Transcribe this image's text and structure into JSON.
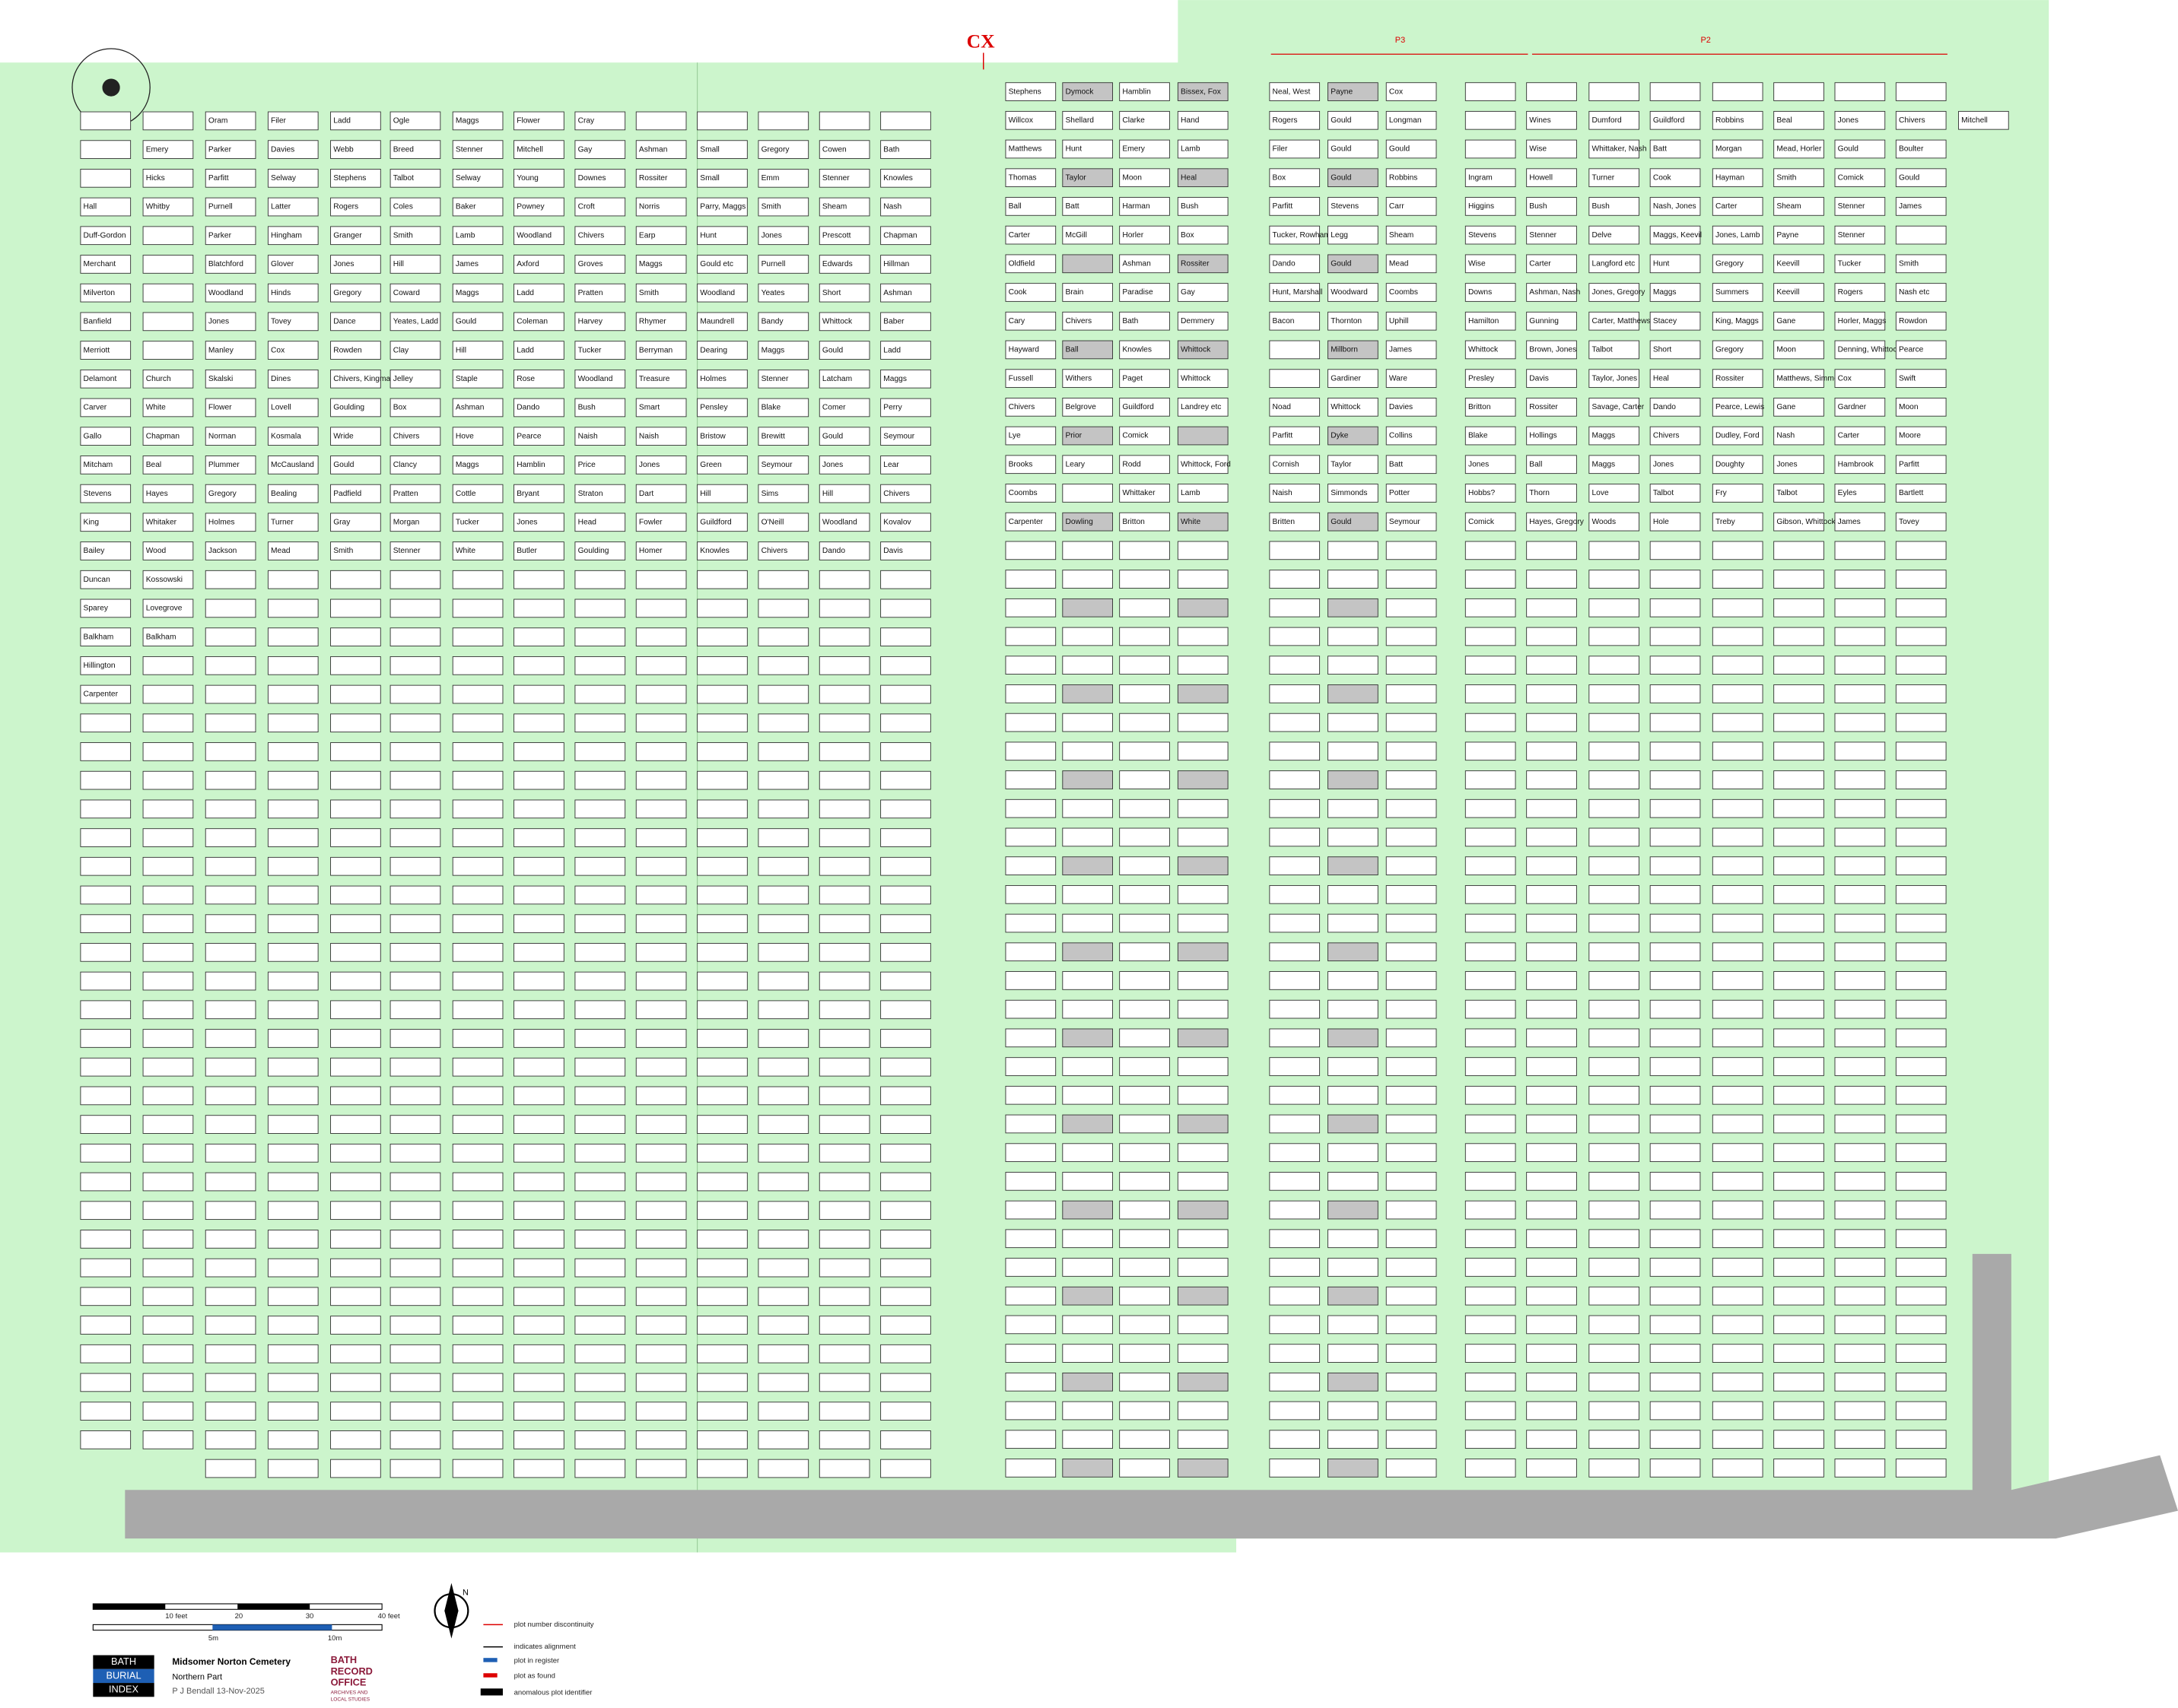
{
  "header": {
    "cx": "CX",
    "p3": "P3",
    "p2": "P2"
  },
  "plots": {
    "columns": [
      [
        null,
        null,
        null,
        "Hall",
        "Duff-Gordon",
        "Merchant",
        "Milverton",
        "Banfield",
        "Merriott",
        "Delamont",
        "Carver",
        "Gallo",
        "Mitcham",
        "Stevens",
        "King",
        "Bailey",
        "Duncan",
        "Sparey",
        "Balkham",
        "Hillington",
        "Carpenter"
      ],
      [
        null,
        "Emery",
        "Hicks",
        "Whitby",
        null,
        null,
        null,
        null,
        null,
        "Church",
        "White",
        "Chapman",
        "Beal",
        "Hayes",
        "Whitaker",
        "Wood",
        "Kossowski",
        "Lovegrove",
        "Balkham"
      ],
      [
        "Oram",
        "Parker",
        "Parfitt",
        "Purnell",
        "Parker",
        "Blatchford",
        "Woodland",
        "Jones",
        "Manley",
        "Skalski",
        "Flower",
        "Norman",
        "Plummer",
        "Gregory",
        "Holmes",
        "Jackson"
      ],
      [
        "Filer",
        "Davies",
        "Selway",
        "Latter",
        "Hingham",
        "Glover",
        "Hinds",
        "Tovey",
        "Cox",
        "Dines",
        "Lovell",
        "Kosmala",
        "McCausland",
        "Bealing",
        "Turner",
        "Mead"
      ],
      [
        "Ladd",
        "Webb",
        "Stephens",
        "Rogers",
        "Granger",
        "Jones",
        "Gregory",
        "Dance",
        "Rowden",
        "Chivers, Kingman",
        "Goulding",
        "Wride",
        "Gould",
        "Padfield",
        "Gray",
        "Smith"
      ],
      [
        "Ogle",
        "Breed",
        "Talbot",
        "Coles",
        "Smith",
        "Hill",
        "Coward",
        "Yeates, Ladd",
        "Clay",
        "Jelley",
        "Box",
        "Chivers",
        "Clancy",
        "Pratten",
        "Morgan",
        "Stenner"
      ],
      [
        "Maggs",
        "Stenner",
        "Selway",
        "Baker",
        "Lamb",
        "James",
        "Maggs",
        "Gould",
        "Hill",
        "Staple",
        "Ashman",
        "Hove",
        "Maggs",
        "Cottle",
        "Tucker",
        "White"
      ],
      [
        "Flower",
        "Mitchell",
        "Young",
        "Powney",
        "Woodland",
        "Axford",
        "Ladd",
        "Coleman",
        "Ladd",
        "Rose",
        "Dando",
        "Pearce",
        "Hamblin",
        "Bryant",
        "Jones",
        "Butler"
      ],
      [
        "Cray",
        "Gay",
        "Downes",
        "Croft",
        "Chivers",
        "Groves",
        "Pratten",
        "Harvey",
        "Tucker",
        "Woodland",
        "Bush",
        "Naish",
        "Price",
        "Straton",
        "Head",
        "Goulding"
      ],
      [
        null,
        "Ashman",
        "Rossiter",
        "Norris",
        "Earp",
        "Maggs",
        "Smith",
        "Rhymer",
        "Berryman",
        "Treasure",
        "Smart",
        "Naish",
        "Jones",
        "Dart",
        "Fowler",
        "Homer"
      ],
      [
        null,
        "Small",
        "Small",
        "Parry, Maggs",
        "Hunt",
        "Gould etc",
        "Woodland",
        "Maundrell",
        "Dearing",
        "Holmes",
        "Pensley",
        "Bristow",
        "Green",
        "Hill",
        "Guildford",
        "Knowles"
      ],
      [
        null,
        "Gregory",
        "Emm",
        "Smith",
        "Jones",
        "Purnell",
        "Yeates",
        "Bandy",
        "Maggs",
        "Stenner",
        "Blake",
        "Brewitt",
        "Seymour",
        "Sims",
        "O'Neill",
        "Chivers"
      ],
      [
        null,
        "Cowen",
        "Stenner",
        "Sheam",
        "Prescott",
        "Edwards",
        "Short",
        "Whittock",
        "Gould",
        "Latcham",
        "Comer",
        "Gould",
        "Jones",
        "Hill",
        "Woodland",
        "Dando"
      ],
      [
        null,
        "Bath",
        "Knowles",
        "Nash",
        "Chapman",
        "Hillman",
        "Ashman",
        "Baber",
        "Ladd",
        "Maggs",
        "Perry",
        "Seymour",
        "Lear",
        "Chivers",
        "Kovalov",
        "Davis"
      ],
      [
        "Stephens",
        "Willcox",
        "Matthews",
        "Thomas",
        "Ball",
        "Carter",
        "Oldfield",
        "Cook",
        "Cary",
        "Hayward",
        "Fussell",
        "Chivers",
        "Lye",
        "Brooks",
        "Coombs",
        "Carpenter"
      ],
      [
        "Dymock",
        "Shellard",
        "Hunt",
        "Taylor",
        "Batt",
        "McGill",
        null,
        "Brain",
        "Chivers",
        "Ball",
        "Withers",
        "Belgrove",
        "Prior",
        "Leary",
        null,
        "Dowling"
      ],
      [
        "Hamblin",
        "Clarke",
        "Emery",
        "Moon",
        "Harman",
        "Horler",
        "Ashman",
        "Paradise",
        "Bath",
        "Knowles",
        "Paget",
        "Guildford",
        "Comick",
        "Rodd",
        "Whittaker",
        "Britton"
      ],
      [
        "Bissex, Fox",
        "Hand",
        "Lamb",
        "Heal",
        "Bush",
        "Box",
        "Rossiter",
        "Gay",
        "Demmery",
        "Whittock",
        "Whittock",
        "Landrey etc",
        null,
        "Whittock, Ford",
        "Lamb",
        "White"
      ],
      [
        "Neal, West",
        "Rogers",
        "Filer",
        "Box",
        "Parfitt",
        "Tucker, Rowham",
        "Dando",
        "Hunt, Marshall",
        "Bacon",
        null,
        null,
        "Noad",
        "Parfitt",
        "Cornish",
        "Naish",
        "Britten"
      ],
      [
        "Payne",
        "Gould",
        "Gould",
        "Gould",
        "Stevens",
        "Legg",
        "Gould",
        "Woodward",
        "Thornton",
        "Millborn",
        "Gardiner",
        "Whittock",
        "Dyke",
        "Taylor",
        "Simmonds",
        "Gould"
      ],
      [
        "Cox",
        "Longman",
        "Gould",
        "Robbins",
        "Carr",
        "Sheam",
        "Mead",
        "Coombs",
        "Uphill",
        "James",
        "Ware",
        "Davies",
        "Collins",
        "Batt",
        "Potter",
        "Seymour"
      ],
      [
        null,
        null,
        null,
        "Ingram",
        "Higgins",
        "Stevens",
        "Wise",
        "Downs",
        "Hamilton",
        "Whittock",
        "Presley",
        "Britton",
        "Blake",
        "Jones",
        "Hobbs?",
        "Comick"
      ],
      [
        null,
        "Wines",
        "Wise",
        "Howell",
        "Bush",
        "Stenner",
        "Carter",
        "Ashman, Nash",
        "Gunning",
        "Brown, Jones",
        "Davis",
        "Rossiter",
        "Hollings",
        "Ball",
        "Thorn",
        "Hayes, Gregory"
      ],
      [
        null,
        "Dumford",
        "Whittaker, Nash",
        "Turner",
        "Bush",
        "Delve",
        "Langford etc",
        "Jones, Gregory",
        "Carter, Matthews",
        "Talbot",
        "Taylor, Jones",
        "Savage, Carter",
        "Maggs",
        "Maggs",
        "Love",
        "Woods"
      ],
      [
        null,
        "Guildford",
        "Batt",
        "Cook",
        "Nash, Jones",
        "Maggs, Keevil",
        "Hunt",
        "Maggs",
        "Stacey",
        "Short",
        "Heal",
        "Dando",
        "Chivers",
        "Jones",
        "Talbot",
        "Hole"
      ],
      [
        null,
        "Robbins",
        "Morgan",
        "Hayman",
        "Carter",
        "Jones, Lamb",
        "Gregory",
        "Summers",
        "King, Maggs",
        "Gregory",
        "Rossiter",
        "Pearce, Lewis",
        "Dudley, Ford",
        "Doughty",
        "Fry",
        "Treby"
      ],
      [
        null,
        "Beal",
        "Mead, Horler",
        "Smith",
        "Sheam",
        "Payne",
        "Keevill",
        "Keevill",
        "Gane",
        "Moon",
        "Matthews, Simmonds",
        "Gane",
        "Nash",
        "Jones",
        "Talbot",
        "Gibson, Whittock"
      ],
      [
        null,
        "Jones",
        "Gould",
        "Comick",
        "Stenner",
        "Stenner",
        "Tucker",
        "Rogers",
        "Horler, Maggs",
        "Denning, Whittock",
        "Cox",
        "Gardner",
        "Carter",
        "Hambrook",
        "Eyles",
        "James"
      ],
      [
        null,
        "Chivers",
        "Boulter",
        "Gould",
        "James",
        null,
        "Smith",
        "Nash etc",
        "Rowdon",
        "Pearce",
        "Swift",
        "Moon",
        "Moore",
        "Parfitt",
        "Bartlett",
        "Tovey"
      ],
      [
        null,
        "Mitchell"
      ]
    ]
  },
  "legend": {
    "scale_feet": [
      "10 feet",
      "20",
      "30",
      "40 feet"
    ],
    "scale_m": [
      "5m",
      "10m"
    ],
    "index_logo": [
      "BATH",
      "BURIAL",
      "INDEX"
    ],
    "title": "Midsomer Norton Cemetery",
    "subtitle": "Northern Part",
    "author": "P J Bendall 13-Nov-2025",
    "office": [
      "BATH",
      "RECORD",
      "OFFICE",
      "ARCHIVES AND",
      "LOCAL STUDIES"
    ],
    "north": "N",
    "items": [
      "plot number discontinuity",
      "indicates alignment",
      "plot in register",
      "plot as found",
      "anomalous plot identifier"
    ]
  }
}
